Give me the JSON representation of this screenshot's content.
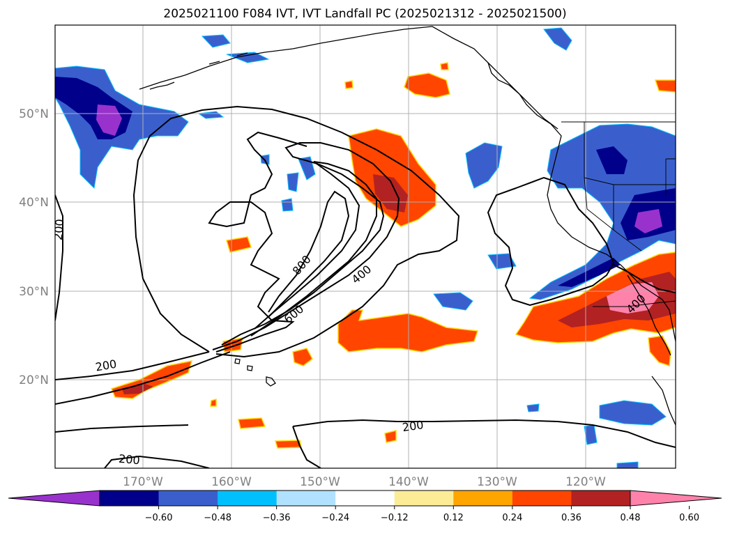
{
  "title": "2025021100 F084 IVT, IVT Landfall PC (2025021312 - 2025021500)",
  "axes": {
    "lat_labels": [
      "50°N",
      "40°N",
      "30°N",
      "20°N"
    ],
    "lon_labels": [
      "170°W",
      "160°W",
      "150°W",
      "140°W",
      "130°W",
      "120°W"
    ]
  },
  "contours": {
    "levels": [
      "200",
      "400",
      "600",
      "800"
    ],
    "labels": [
      "200",
      "200",
      "200",
      "200",
      "400",
      "600",
      "800",
      "400"
    ]
  },
  "colorbar": {
    "colors": [
      "#9932cc",
      "#00008b",
      "#3a5fcd",
      "#00bfff",
      "#b0e2ff",
      "#ffffff",
      "#fdec96",
      "#ffa500",
      "#ff4500",
      "#b22222",
      "#ff82ab"
    ],
    "ticks": [
      "−0.60",
      "−0.48",
      "−0.36",
      "−0.24",
      "−0.12",
      "0.12",
      "0.24",
      "0.36",
      "0.48",
      "0.60"
    ]
  },
  "colors": {
    "positive_outline": "#ffd700",
    "negative_outline": "#00bfff",
    "grid": "#b0b0b0"
  }
}
